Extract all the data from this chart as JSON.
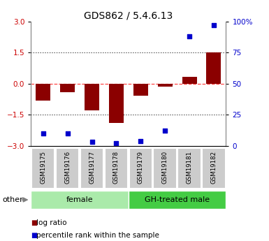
{
  "title": "GDS862 / 5.4.6.13",
  "samples": [
    "GSM19175",
    "GSM19176",
    "GSM19177",
    "GSM19178",
    "GSM19179",
    "GSM19180",
    "GSM19181",
    "GSM19182"
  ],
  "log_ratio": [
    -0.82,
    -0.42,
    -1.3,
    -1.9,
    -0.58,
    -0.15,
    0.35,
    1.5
  ],
  "percentile": [
    10,
    10,
    3,
    2,
    4,
    12,
    88,
    97
  ],
  "ylim_left": [
    -3,
    3
  ],
  "ylim_right": [
    0,
    100
  ],
  "yticks_left": [
    -3,
    -1.5,
    0,
    1.5,
    3
  ],
  "yticks_right": [
    0,
    25,
    50,
    75,
    100
  ],
  "bar_color": "#8B0000",
  "dot_color": "#0000CC",
  "zero_line_color": "#FF4444",
  "dotted_line_color": "#444444",
  "groups": [
    {
      "label": "female",
      "start": 0,
      "end": 4,
      "color": "#AAEAAA"
    },
    {
      "label": "GH-treated male",
      "start": 4,
      "end": 8,
      "color": "#44CC44"
    }
  ],
  "legend_log_ratio": "log ratio",
  "legend_percentile": "percentile rank within the sample",
  "other_label": "other",
  "bg_color": "#FFFFFF",
  "plot_bg": "#FFFFFF",
  "tick_label_color_left": "#CC0000",
  "tick_label_color_right": "#0000CC",
  "sample_box_color": "#CCCCCC",
  "title_fontsize": 10,
  "axis_fontsize": 7.5,
  "legend_fontsize": 7.5
}
